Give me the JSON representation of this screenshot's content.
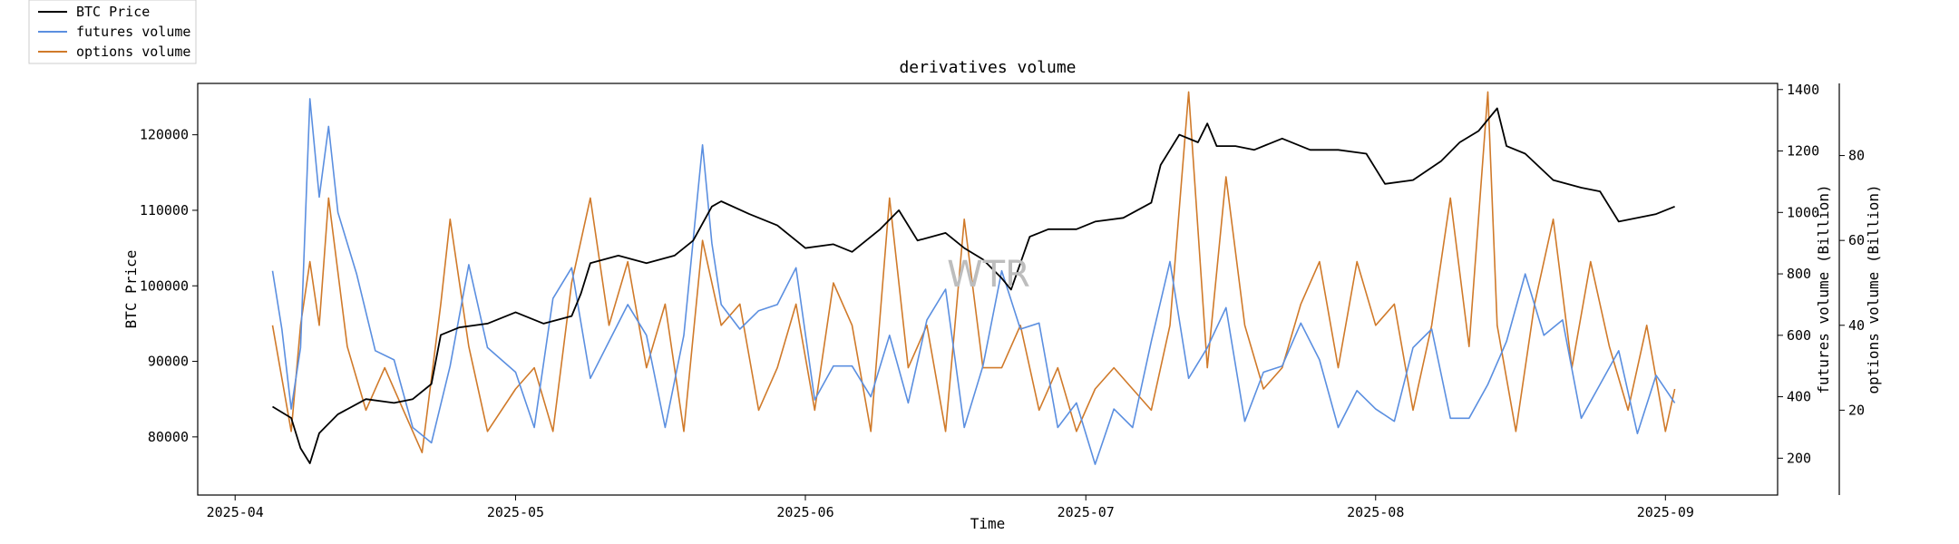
{
  "chart_data": {
    "type": "line",
    "title": "derivatives volume",
    "xlabel": "Time",
    "ylabel": "BTC Price",
    "y2label": "futures volume (Billion)",
    "y3label": "options volume (Billion)",
    "watermark": "WTR",
    "legend_position": "top-left",
    "grid": false,
    "x_range": [
      "2025-03-28",
      "2025-09-13"
    ],
    "x_ticks": [
      "2025-04",
      "2025-05",
      "2025-06",
      "2025-07",
      "2025-08",
      "2025-09"
    ],
    "ylim": [
      72300,
      126800
    ],
    "y_ticks": [
      80000,
      90000,
      100000,
      110000,
      120000
    ],
    "y2lim": [
      80,
      1420
    ],
    "y2_ticks": [
      200,
      400,
      600,
      800,
      1000,
      1200,
      1400
    ],
    "y3lim": [
      0,
      97
    ],
    "y3_ticks": [
      20,
      40,
      60,
      80
    ],
    "series": [
      {
        "name": "BTC Price",
        "color": "#000000",
        "axis": "y",
        "x": [
          "2025-04-05",
          "2025-04-07",
          "2025-04-08",
          "2025-04-09",
          "2025-04-10",
          "2025-04-12",
          "2025-04-15",
          "2025-04-18",
          "2025-04-20",
          "2025-04-22",
          "2025-04-23",
          "2025-04-25",
          "2025-04-28",
          "2025-05-01",
          "2025-05-04",
          "2025-05-07",
          "2025-05-08",
          "2025-05-09",
          "2025-05-12",
          "2025-05-15",
          "2025-05-18",
          "2025-05-20",
          "2025-05-22",
          "2025-05-23",
          "2025-05-26",
          "2025-05-29",
          "2025-06-01",
          "2025-06-04",
          "2025-06-06",
          "2025-06-09",
          "2025-06-11",
          "2025-06-13",
          "2025-06-16",
          "2025-06-18",
          "2025-06-20",
          "2025-06-22",
          "2025-06-23",
          "2025-06-25",
          "2025-06-27",
          "2025-06-30",
          "2025-07-02",
          "2025-07-05",
          "2025-07-08",
          "2025-07-09",
          "2025-07-10",
          "2025-07-11",
          "2025-07-13",
          "2025-07-14",
          "2025-07-15",
          "2025-07-17",
          "2025-07-19",
          "2025-07-22",
          "2025-07-25",
          "2025-07-28",
          "2025-07-31",
          "2025-08-02",
          "2025-08-05",
          "2025-08-08",
          "2025-08-10",
          "2025-08-12",
          "2025-08-14",
          "2025-08-15",
          "2025-08-17",
          "2025-08-20",
          "2025-08-23",
          "2025-08-25",
          "2025-08-27",
          "2025-08-29",
          "2025-08-31",
          "2025-09-02"
        ],
        "values": [
          84000,
          82500,
          78500,
          76500,
          80500,
          83000,
          85000,
          84500,
          85000,
          87000,
          93500,
          94500,
          95000,
          96500,
          95000,
          96000,
          99000,
          103000,
          104000,
          103000,
          104000,
          106000,
          110500,
          111200,
          109500,
          108000,
          105000,
          105500,
          104500,
          107500,
          110000,
          106000,
          107000,
          105000,
          103500,
          101000,
          99500,
          106500,
          107500,
          107500,
          108500,
          109000,
          111000,
          116000,
          118000,
          120000,
          119000,
          121500,
          118500,
          118500,
          118000,
          119500,
          118000,
          118000,
          117500,
          113500,
          114000,
          116500,
          119000,
          120500,
          123500,
          118500,
          117500,
          114000,
          113000,
          112500,
          108500,
          109000,
          109500,
          110500
        ]
      },
      {
        "name": "futures volume",
        "color": "#5b8fe0",
        "axis": "y2",
        "x": [
          "2025-04-05",
          "2025-04-06",
          "2025-04-07",
          "2025-04-08",
          "2025-04-09",
          "2025-04-10",
          "2025-04-11",
          "2025-04-12",
          "2025-04-14",
          "2025-04-16",
          "2025-04-18",
          "2025-04-20",
          "2025-04-22",
          "2025-04-24",
          "2025-04-26",
          "2025-04-28",
          "2025-05-01",
          "2025-05-03",
          "2025-05-05",
          "2025-05-07",
          "2025-05-09",
          "2025-05-11",
          "2025-05-13",
          "2025-05-15",
          "2025-05-17",
          "2025-05-19",
          "2025-05-21",
          "2025-05-22",
          "2025-05-23",
          "2025-05-25",
          "2025-05-27",
          "2025-05-29",
          "2025-05-31",
          "2025-06-02",
          "2025-06-04",
          "2025-06-06",
          "2025-06-08",
          "2025-06-10",
          "2025-06-12",
          "2025-06-14",
          "2025-06-16",
          "2025-06-18",
          "2025-06-20",
          "2025-06-22",
          "2025-06-24",
          "2025-06-26",
          "2025-06-28",
          "2025-06-30",
          "2025-07-02",
          "2025-07-04",
          "2025-07-06",
          "2025-07-08",
          "2025-07-10",
          "2025-07-12",
          "2025-07-14",
          "2025-07-16",
          "2025-07-18",
          "2025-07-20",
          "2025-07-22",
          "2025-07-24",
          "2025-07-26",
          "2025-07-28",
          "2025-07-30",
          "2025-08-01",
          "2025-08-03",
          "2025-08-05",
          "2025-08-07",
          "2025-08-09",
          "2025-08-11",
          "2025-08-13",
          "2025-08-15",
          "2025-08-17",
          "2025-08-19",
          "2025-08-21",
          "2025-08-23",
          "2025-08-25",
          "2025-08-27",
          "2025-08-29",
          "2025-08-31",
          "2025-09-02"
        ],
        "values": [
          810,
          620,
          360,
          560,
          1370,
          1050,
          1280,
          1000,
          800,
          550,
          520,
          300,
          250,
          500,
          830,
          560,
          480,
          300,
          720,
          820,
          460,
          580,
          700,
          600,
          300,
          600,
          1220,
          900,
          700,
          620,
          680,
          700,
          820,
          390,
          500,
          500,
          400,
          600,
          380,
          650,
          750,
          300,
          500,
          810,
          620,
          640,
          300,
          380,
          180,
          360,
          300,
          580,
          840,
          460,
          560,
          690,
          320,
          480,
          500,
          640,
          520,
          300,
          420,
          360,
          320,
          560,
          620,
          330,
          330,
          440,
          580,
          800,
          600,
          650,
          330,
          440,
          550,
          280,
          470,
          380
        ]
      },
      {
        "name": "options volume",
        "color": "#d07a2a",
        "axis": "y3",
        "x": [
          "2025-04-05",
          "2025-04-07",
          "2025-04-08",
          "2025-04-09",
          "2025-04-10",
          "2025-04-11",
          "2025-04-13",
          "2025-04-15",
          "2025-04-17",
          "2025-04-19",
          "2025-04-21",
          "2025-04-23",
          "2025-04-24",
          "2025-04-26",
          "2025-04-28",
          "2025-05-01",
          "2025-05-03",
          "2025-05-05",
          "2025-05-07",
          "2025-05-09",
          "2025-05-11",
          "2025-05-13",
          "2025-05-15",
          "2025-05-17",
          "2025-05-19",
          "2025-05-21",
          "2025-05-23",
          "2025-05-25",
          "2025-05-27",
          "2025-05-29",
          "2025-05-31",
          "2025-06-02",
          "2025-06-04",
          "2025-06-06",
          "2025-06-08",
          "2025-06-10",
          "2025-06-12",
          "2025-06-14",
          "2025-06-16",
          "2025-06-18",
          "2025-06-20",
          "2025-06-22",
          "2025-06-24",
          "2025-06-26",
          "2025-06-28",
          "2025-06-30",
          "2025-07-02",
          "2025-07-04",
          "2025-07-06",
          "2025-07-08",
          "2025-07-10",
          "2025-07-12",
          "2025-07-14",
          "2025-07-16",
          "2025-07-18",
          "2025-07-20",
          "2025-07-22",
          "2025-07-24",
          "2025-07-26",
          "2025-07-28",
          "2025-07-30",
          "2025-08-01",
          "2025-08-03",
          "2025-08-05",
          "2025-08-07",
          "2025-08-09",
          "2025-08-11",
          "2025-08-13",
          "2025-08-14",
          "2025-08-16",
          "2025-08-18",
          "2025-08-20",
          "2025-08-22",
          "2025-08-24",
          "2025-08-26",
          "2025-08-28",
          "2025-08-30",
          "2025-09-01",
          "2025-09-02"
        ],
        "values": [
          40,
          15,
          40,
          55,
          40,
          70,
          35,
          20,
          30,
          20,
          10,
          45,
          65,
          35,
          15,
          25,
          30,
          15,
          50,
          70,
          40,
          55,
          30,
          45,
          15,
          60,
          40,
          45,
          20,
          30,
          45,
          20,
          50,
          40,
          15,
          70,
          30,
          40,
          15,
          65,
          30,
          30,
          40,
          20,
          30,
          15,
          25,
          30,
          25,
          20,
          40,
          95,
          30,
          75,
          40,
          25,
          30,
          45,
          55,
          30,
          55,
          40,
          45,
          20,
          40,
          70,
          35,
          95,
          40,
          15,
          45,
          65,
          30,
          55,
          35,
          20,
          40,
          15,
          25
        ]
      }
    ]
  }
}
